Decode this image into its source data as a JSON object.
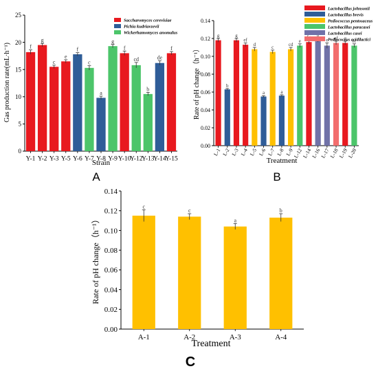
{
  "figure": {
    "panel_letters": [
      "A",
      "B",
      "C"
    ]
  },
  "chart_data": [
    {
      "panel": "A",
      "type": "bar",
      "xlabel": "Strain",
      "ylabel": "Gas production rate(mL·h⁻¹)",
      "ylim": [
        0,
        25
      ],
      "yticks": [
        0,
        5,
        10,
        15,
        20,
        25
      ],
      "grid": false,
      "legend_position": "top-right",
      "legend": [
        {
          "name": "Saccharomyces cerevisiae",
          "color": "#e8191f"
        },
        {
          "name": "Pichia kudriavzevii",
          "color": "#2f5d98"
        },
        {
          "name": "Wickerhamomyces anomalus",
          "color": "#4cc56a"
        }
      ],
      "categories": [
        "Y-1",
        "Y-2",
        "Y-3",
        "Y-5",
        "Y-6",
        "Y-7",
        "Y-8",
        "Y-9",
        "Y-10",
        "Y-12",
        "Y-13",
        "Y-14",
        "Y-15"
      ],
      "values": [
        18.2,
        19.5,
        15.5,
        16.5,
        17.8,
        15.3,
        9.8,
        19.3,
        18.0,
        15.8,
        10.5,
        16.2,
        18.0
      ],
      "errors": [
        0.4,
        0.3,
        0.3,
        0.3,
        0.3,
        0.4,
        0.3,
        0.3,
        0.4,
        0.5,
        0.3,
        0.4,
        0.3
      ],
      "groups": [
        0,
        0,
        0,
        0,
        1,
        2,
        1,
        2,
        0,
        2,
        2,
        1,
        0
      ],
      "significance": [
        "f",
        "g",
        "c",
        "e",
        "f",
        "c",
        "a",
        "g",
        "f",
        "cd",
        "b",
        "de",
        "f"
      ]
    },
    {
      "panel": "B",
      "type": "bar",
      "xlabel": "Treatment",
      "ylabel": "Rate of pH change（h⁻¹）",
      "ylim": [
        0,
        0.14
      ],
      "yticks": [
        "0.00",
        "0.02",
        "0.04",
        "0.06",
        "0.08",
        "0.10",
        "0.12",
        "0.14"
      ],
      "grid": false,
      "legend_position": "top-right",
      "legend": [
        {
          "name": "Lactobacillus johnsonii",
          "color": "#e8191f"
        },
        {
          "name": "Lactobacillus brevis",
          "color": "#2f5d98"
        },
        {
          "name": "Pediococcus pentosaceus",
          "color": "#ffc000"
        },
        {
          "name": "Lactobacillus paracasei",
          "color": "#4cc56a"
        },
        {
          "name": "Lactobacillus casei",
          "color": "#7072a8"
        },
        {
          "name": "Pediococcus acidilactici",
          "color": "#f26d6d"
        }
      ],
      "categories": [
        "L-1",
        "L-2",
        "L-3",
        "L-4",
        "L-5",
        "L-6",
        "L-7",
        "L-8",
        "L-9",
        "L-12",
        "L-14",
        "L-16",
        "L-17",
        "L-18",
        "L-19",
        "L-20"
      ],
      "values": [
        0.118,
        0.063,
        0.118,
        0.113,
        0.108,
        0.055,
        0.105,
        0.056,
        0.108,
        0.112,
        0.116,
        0.118,
        0.112,
        0.115,
        0.115,
        0.112
      ],
      "errors": [
        0.002,
        0.001,
        0.002,
        0.002,
        0.002,
        0.001,
        0.002,
        0.001,
        0.002,
        0.002,
        0.002,
        0.002,
        0.003,
        0.002,
        0.002,
        0.002
      ],
      "groups": [
        0,
        1,
        0,
        0,
        2,
        1,
        2,
        1,
        2,
        3,
        0,
        4,
        4,
        5,
        0,
        3
      ],
      "significance": [
        "g",
        "b",
        "g",
        "ef",
        "d",
        "a",
        "c",
        "a",
        "cd",
        "e",
        "fg",
        "g",
        "e",
        "ef",
        "g",
        "ef"
      ]
    },
    {
      "panel": "C",
      "type": "bar",
      "xlabel": "Treatment",
      "ylabel": "Rate of pH change（h⁻¹）",
      "ylim": [
        0,
        0.14
      ],
      "yticks": [
        "0.00",
        "0.02",
        "0.04",
        "0.06",
        "0.08",
        "0.10",
        "0.12",
        "0.14"
      ],
      "grid": false,
      "bar_color": "#ffc000",
      "categories": [
        "A-1",
        "A-2",
        "A-3",
        "A-4"
      ],
      "values": [
        0.115,
        0.114,
        0.104,
        0.113
      ],
      "errors": [
        0.006,
        0.003,
        0.003,
        0.004
      ],
      "significance": [
        "c",
        "c",
        "a",
        "b"
      ]
    }
  ]
}
